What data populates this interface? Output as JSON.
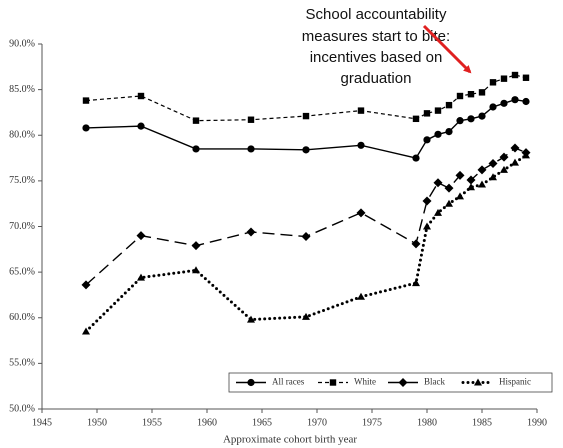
{
  "chart_data": {
    "type": "line",
    "x_label": "Approximate cohort birth year",
    "annotation": [
      "School accountability",
      "measures start to bite:",
      "incentives based on",
      "graduation"
    ],
    "x": [
      1949,
      1954,
      1959,
      1964,
      1969,
      1974,
      1979,
      1980,
      1981,
      1982,
      1983,
      1984,
      1985,
      1986,
      1987,
      1988,
      1989
    ],
    "series": [
      {
        "name": "All races",
        "color": "#000000",
        "values": [
          80.8,
          81.0,
          78.5,
          78.5,
          78.4,
          78.9,
          77.5,
          79.5,
          80.1,
          80.4,
          81.6,
          81.8,
          82.1,
          83.1,
          83.5,
          83.9,
          83.7
        ]
      },
      {
        "name": "White",
        "color": "#000000",
        "values": [
          83.8,
          84.3,
          81.6,
          81.7,
          82.1,
          82.7,
          81.8,
          82.4,
          82.7,
          83.3,
          84.3,
          84.5,
          84.7,
          85.8,
          86.2,
          86.6,
          86.3
        ]
      },
      {
        "name": "Black",
        "color": "#000000",
        "values": [
          63.6,
          69.0,
          67.9,
          69.4,
          68.9,
          71.5,
          68.1,
          72.8,
          74.8,
          74.2,
          75.6,
          75.1,
          76.2,
          76.9,
          77.6,
          78.6,
          78.1
        ]
      },
      {
        "name": "Hispanic",
        "color": "#000000",
        "values": [
          58.5,
          64.4,
          65.2,
          59.8,
          60.1,
          62.3,
          63.8,
          70.0,
          71.5,
          72.5,
          73.3,
          74.3,
          74.6,
          75.4,
          76.2,
          77.0,
          77.8
        ]
      }
    ],
    "xlim": [
      1945,
      1990
    ],
    "xticks": [
      1945,
      1950,
      1955,
      1960,
      1965,
      1970,
      1975,
      1980,
      1985,
      1990
    ],
    "ylim": [
      50,
      90
    ],
    "yticks": [
      {
        "value": 50,
        "label": "50.0%"
      },
      {
        "value": 55,
        "label": "55.0%"
      },
      {
        "value": 60,
        "label": "60.0%"
      },
      {
        "value": 65,
        "label": "65.0%"
      },
      {
        "value": 70,
        "label": "70.0%"
      },
      {
        "value": 75,
        "label": "75.0%"
      },
      {
        "value": 80,
        "label": "80.0%"
      },
      {
        "value": 85,
        "label": "85.0%"
      },
      {
        "value": 90,
        "label": "90.0%"
      }
    ],
    "grid": false,
    "legend": "bottom-right"
  }
}
